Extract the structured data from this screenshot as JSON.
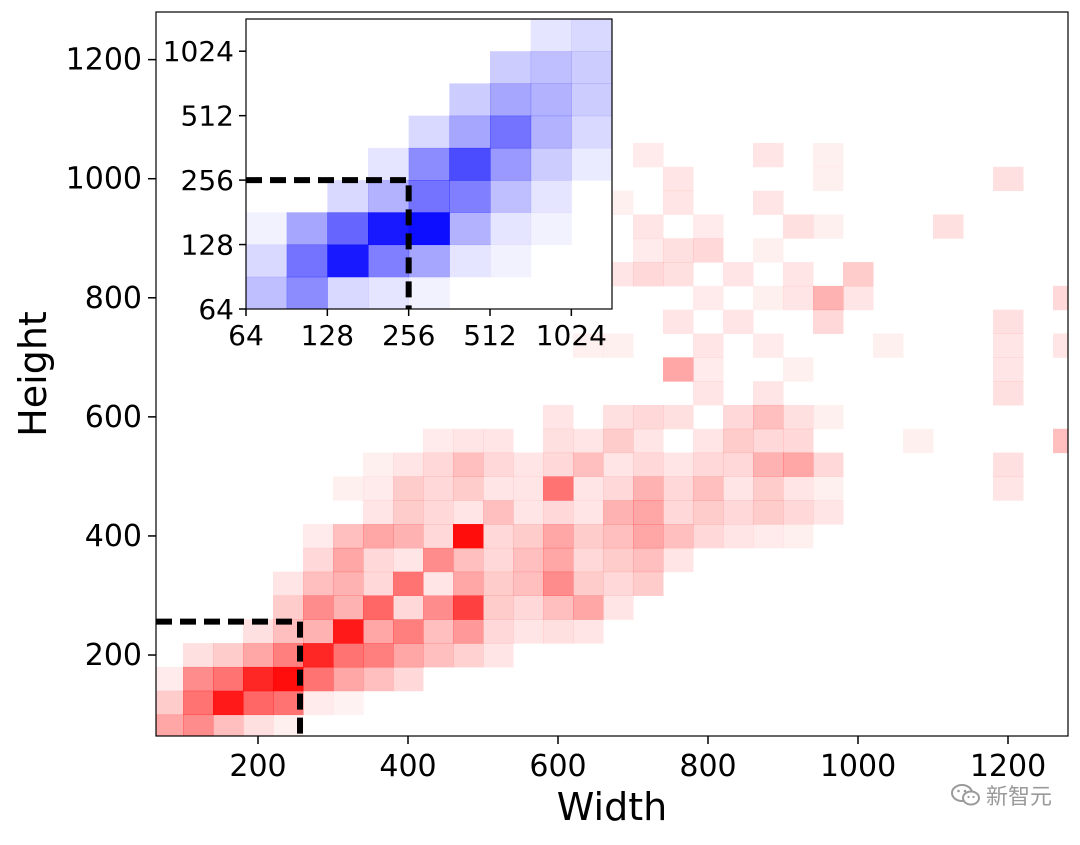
{
  "chart_data": [
    {
      "type": "heatmap",
      "title": "",
      "xlabel": "Width",
      "ylabel": "Height",
      "xlim": [
        64,
        1280
      ],
      "ylim": [
        64,
        1280
      ],
      "xticks": [
        200,
        400,
        600,
        800,
        1000,
        1200
      ],
      "yticks": [
        200,
        400,
        600,
        800,
        1000,
        1200
      ],
      "bin_size": 40,
      "color": "#ff0000",
      "intensity_scale": [
        0,
        1
      ],
      "guide": {
        "style": "dashed",
        "x": 256,
        "y": 256,
        "color": "#000000"
      },
      "cells": [
        [
          80,
          80,
          0.35
        ],
        [
          120,
          80,
          0.45
        ],
        [
          160,
          80,
          0.25
        ],
        [
          200,
          80,
          0.12
        ],
        [
          240,
          80,
          0.06
        ],
        [
          80,
          120,
          0.2
        ],
        [
          120,
          120,
          0.55
        ],
        [
          160,
          120,
          0.9
        ],
        [
          200,
          120,
          0.6
        ],
        [
          240,
          120,
          0.55
        ],
        [
          280,
          120,
          0.08
        ],
        [
          320,
          120,
          0.05
        ],
        [
          80,
          160,
          0.08
        ],
        [
          120,
          160,
          0.45
        ],
        [
          160,
          160,
          0.55
        ],
        [
          200,
          160,
          0.85
        ],
        [
          240,
          160,
          0.95
        ],
        [
          280,
          160,
          0.55
        ],
        [
          320,
          160,
          0.35
        ],
        [
          360,
          160,
          0.25
        ],
        [
          400,
          160,
          0.15
        ],
        [
          120,
          200,
          0.12
        ],
        [
          160,
          200,
          0.2
        ],
        [
          200,
          200,
          0.35
        ],
        [
          240,
          200,
          0.5
        ],
        [
          280,
          200,
          0.85
        ],
        [
          320,
          200,
          0.55
        ],
        [
          360,
          200,
          0.5
        ],
        [
          400,
          200,
          0.35
        ],
        [
          440,
          200,
          0.25
        ],
        [
          480,
          200,
          0.18
        ],
        [
          520,
          200,
          0.1
        ],
        [
          200,
          240,
          0.12
        ],
        [
          240,
          240,
          0.25
        ],
        [
          280,
          240,
          0.3
        ],
        [
          320,
          240,
          0.9
        ],
        [
          360,
          240,
          0.35
        ],
        [
          400,
          240,
          0.5
        ],
        [
          440,
          240,
          0.25
        ],
        [
          480,
          240,
          0.4
        ],
        [
          520,
          240,
          0.15
        ],
        [
          560,
          240,
          0.1
        ],
        [
          600,
          240,
          0.12
        ],
        [
          640,
          240,
          0.1
        ],
        [
          240,
          280,
          0.2
        ],
        [
          280,
          280,
          0.45
        ],
        [
          320,
          280,
          0.3
        ],
        [
          360,
          280,
          0.6
        ],
        [
          400,
          280,
          0.15
        ],
        [
          440,
          280,
          0.45
        ],
        [
          480,
          280,
          0.75
        ],
        [
          520,
          280,
          0.2
        ],
        [
          560,
          280,
          0.15
        ],
        [
          600,
          280,
          0.25
        ],
        [
          640,
          280,
          0.35
        ],
        [
          680,
          280,
          0.1
        ],
        [
          240,
          320,
          0.1
        ],
        [
          280,
          320,
          0.25
        ],
        [
          320,
          320,
          0.3
        ],
        [
          360,
          320,
          0.15
        ],
        [
          400,
          320,
          0.55
        ],
        [
          440,
          320,
          0.1
        ],
        [
          480,
          320,
          0.35
        ],
        [
          520,
          320,
          0.2
        ],
        [
          560,
          320,
          0.25
        ],
        [
          600,
          320,
          0.45
        ],
        [
          640,
          320,
          0.2
        ],
        [
          680,
          320,
          0.15
        ],
        [
          720,
          320,
          0.2
        ],
        [
          280,
          360,
          0.15
        ],
        [
          320,
          360,
          0.35
        ],
        [
          360,
          360,
          0.15
        ],
        [
          400,
          360,
          0.1
        ],
        [
          440,
          360,
          0.45
        ],
        [
          480,
          360,
          0.25
        ],
        [
          520,
          360,
          0.15
        ],
        [
          560,
          360,
          0.25
        ],
        [
          600,
          360,
          0.35
        ],
        [
          640,
          360,
          0.15
        ],
        [
          680,
          360,
          0.2
        ],
        [
          720,
          360,
          0.25
        ],
        [
          760,
          360,
          0.1
        ],
        [
          280,
          400,
          0.08
        ],
        [
          320,
          400,
          0.25
        ],
        [
          360,
          400,
          0.35
        ],
        [
          400,
          400,
          0.3
        ],
        [
          440,
          400,
          0.15
        ],
        [
          480,
          400,
          0.95
        ],
        [
          520,
          400,
          0.15
        ],
        [
          560,
          400,
          0.2
        ],
        [
          600,
          400,
          0.35
        ],
        [
          640,
          400,
          0.2
        ],
        [
          680,
          400,
          0.25
        ],
        [
          720,
          400,
          0.35
        ],
        [
          760,
          400,
          0.25
        ],
        [
          800,
          400,
          0.15
        ],
        [
          840,
          400,
          0.1
        ],
        [
          880,
          400,
          0.08
        ],
        [
          920,
          400,
          0.06
        ],
        [
          360,
          440,
          0.1
        ],
        [
          400,
          440,
          0.2
        ],
        [
          440,
          440,
          0.15
        ],
        [
          480,
          440,
          0.1
        ],
        [
          520,
          440,
          0.25
        ],
        [
          560,
          440,
          0.1
        ],
        [
          600,
          440,
          0.15
        ],
        [
          640,
          440,
          0.1
        ],
        [
          680,
          440,
          0.3
        ],
        [
          720,
          440,
          0.35
        ],
        [
          760,
          440,
          0.15
        ],
        [
          800,
          440,
          0.2
        ],
        [
          840,
          440,
          0.15
        ],
        [
          880,
          440,
          0.2
        ],
        [
          920,
          440,
          0.15
        ],
        [
          960,
          440,
          0.1
        ],
        [
          320,
          480,
          0.06
        ],
        [
          360,
          480,
          0.08
        ],
        [
          400,
          480,
          0.2
        ],
        [
          440,
          480,
          0.15
        ],
        [
          480,
          480,
          0.2
        ],
        [
          520,
          480,
          0.1
        ],
        [
          560,
          480,
          0.1
        ],
        [
          600,
          480,
          0.55
        ],
        [
          640,
          480,
          0.1
        ],
        [
          680,
          480,
          0.15
        ],
        [
          720,
          480,
          0.3
        ],
        [
          760,
          480,
          0.15
        ],
        [
          800,
          480,
          0.25
        ],
        [
          840,
          480,
          0.1
        ],
        [
          880,
          480,
          0.2
        ],
        [
          920,
          480,
          0.1
        ],
        [
          960,
          480,
          0.06
        ],
        [
          1200,
          480,
          0.1
        ],
        [
          360,
          520,
          0.06
        ],
        [
          400,
          520,
          0.1
        ],
        [
          440,
          520,
          0.15
        ],
        [
          480,
          520,
          0.25
        ],
        [
          520,
          520,
          0.15
        ],
        [
          560,
          520,
          0.1
        ],
        [
          600,
          520,
          0.15
        ],
        [
          640,
          520,
          0.25
        ],
        [
          680,
          520,
          0.1
        ],
        [
          720,
          520,
          0.15
        ],
        [
          760,
          520,
          0.1
        ],
        [
          800,
          520,
          0.15
        ],
        [
          840,
          520,
          0.15
        ],
        [
          880,
          520,
          0.3
        ],
        [
          920,
          520,
          0.35
        ],
        [
          960,
          520,
          0.15
        ],
        [
          1200,
          520,
          0.12
        ],
        [
          440,
          560,
          0.08
        ],
        [
          480,
          560,
          0.1
        ],
        [
          520,
          560,
          0.1
        ],
        [
          600,
          560,
          0.12
        ],
        [
          640,
          560,
          0.1
        ],
        [
          680,
          560,
          0.2
        ],
        [
          720,
          560,
          0.1
        ],
        [
          800,
          560,
          0.1
        ],
        [
          840,
          560,
          0.2
        ],
        [
          880,
          560,
          0.15
        ],
        [
          920,
          560,
          0.15
        ],
        [
          1080,
          560,
          0.06
        ],
        [
          1280,
          560,
          0.25
        ],
        [
          600,
          600,
          0.1
        ],
        [
          680,
          600,
          0.12
        ],
        [
          720,
          600,
          0.15
        ],
        [
          760,
          600,
          0.12
        ],
        [
          840,
          600,
          0.15
        ],
        [
          880,
          600,
          0.25
        ],
        [
          920,
          600,
          0.12
        ],
        [
          960,
          600,
          0.06
        ],
        [
          800,
          640,
          0.1
        ],
        [
          880,
          640,
          0.1
        ],
        [
          1200,
          640,
          0.12
        ],
        [
          760,
          680,
          0.35
        ],
        [
          800,
          680,
          0.08
        ],
        [
          920,
          680,
          0.06
        ],
        [
          1200,
          680,
          0.1
        ],
        [
          640,
          720,
          0.06
        ],
        [
          680,
          720,
          0.06
        ],
        [
          800,
          720,
          0.1
        ],
        [
          880,
          720,
          0.08
        ],
        [
          1040,
          720,
          0.06
        ],
        [
          1200,
          720,
          0.1
        ],
        [
          1280,
          720,
          0.1
        ],
        [
          760,
          760,
          0.1
        ],
        [
          840,
          760,
          0.1
        ],
        [
          960,
          760,
          0.15
        ],
        [
          1200,
          760,
          0.12
        ],
        [
          800,
          800,
          0.08
        ],
        [
          880,
          800,
          0.06
        ],
        [
          920,
          800,
          0.1
        ],
        [
          960,
          800,
          0.3
        ],
        [
          1000,
          800,
          0.1
        ],
        [
          1280,
          800,
          0.15
        ],
        [
          680,
          840,
          0.1
        ],
        [
          720,
          840,
          0.15
        ],
        [
          760,
          840,
          0.12
        ],
        [
          840,
          840,
          0.1
        ],
        [
          920,
          840,
          0.1
        ],
        [
          1000,
          840,
          0.2
        ],
        [
          720,
          880,
          0.08
        ],
        [
          760,
          880,
          0.12
        ],
        [
          800,
          880,
          0.15
        ],
        [
          880,
          880,
          0.06
        ],
        [
          720,
          920,
          0.1
        ],
        [
          800,
          920,
          0.08
        ],
        [
          920,
          920,
          0.12
        ],
        [
          960,
          920,
          0.06
        ],
        [
          1120,
          920,
          0.12
        ],
        [
          680,
          960,
          0.06
        ],
        [
          760,
          960,
          0.1
        ],
        [
          880,
          960,
          0.1
        ],
        [
          760,
          1000,
          0.1
        ],
        [
          960,
          1000,
          0.06
        ],
        [
          1200,
          1000,
          0.12
        ],
        [
          720,
          1040,
          0.08
        ],
        [
          880,
          1040,
          0.1
        ],
        [
          960,
          1040,
          0.06
        ]
      ]
    },
    {
      "type": "heatmap",
      "title": "",
      "xlabel": "",
      "ylabel": "",
      "scale": "log2",
      "xlim": [
        64,
        1448
      ],
      "ylim": [
        64,
        1448
      ],
      "xticks": [
        64,
        128,
        256,
        512,
        1024
      ],
      "yticks": [
        64,
        128,
        256,
        512,
        1024
      ],
      "color": "#0000ff",
      "guide": {
        "style": "dashed",
        "x": 256,
        "y": 256,
        "color": "#000000"
      },
      "cells_log2": [
        [
          6.25,
          6.25,
          0.25
        ],
        [
          6.75,
          6.25,
          0.45
        ],
        [
          7.25,
          6.25,
          0.15
        ],
        [
          7.75,
          6.25,
          0.1
        ],
        [
          8.25,
          6.25,
          0.05
        ],
        [
          6.25,
          6.75,
          0.15
        ],
        [
          6.75,
          6.75,
          0.55
        ],
        [
          7.25,
          6.75,
          0.9
        ],
        [
          7.75,
          6.75,
          0.5
        ],
        [
          8.25,
          6.75,
          0.35
        ],
        [
          8.75,
          6.75,
          0.1
        ],
        [
          9.25,
          6.75,
          0.05
        ],
        [
          6.25,
          7.25,
          0.05
        ],
        [
          6.75,
          7.25,
          0.35
        ],
        [
          7.25,
          7.25,
          0.6
        ],
        [
          7.75,
          7.25,
          0.9
        ],
        [
          8.25,
          7.25,
          0.95
        ],
        [
          8.75,
          7.25,
          0.3
        ],
        [
          9.25,
          7.25,
          0.1
        ],
        [
          9.75,
          7.25,
          0.05
        ],
        [
          7.25,
          7.75,
          0.15
        ],
        [
          7.75,
          7.75,
          0.3
        ],
        [
          8.25,
          7.75,
          0.55
        ],
        [
          8.75,
          7.75,
          0.5
        ],
        [
          9.25,
          7.75,
          0.25
        ],
        [
          9.75,
          7.75,
          0.1
        ],
        [
          7.75,
          8.25,
          0.1
        ],
        [
          8.25,
          8.25,
          0.45
        ],
        [
          8.75,
          8.25,
          0.7
        ],
        [
          9.25,
          8.25,
          0.4
        ],
        [
          9.75,
          8.25,
          0.2
        ],
        [
          10.25,
          8.25,
          0.08
        ],
        [
          8.25,
          8.75,
          0.15
        ],
        [
          8.75,
          8.75,
          0.35
        ],
        [
          9.25,
          8.75,
          0.55
        ],
        [
          9.75,
          8.75,
          0.3
        ],
        [
          10.25,
          8.75,
          0.15
        ],
        [
          10.75,
          8.75,
          0.05
        ],
        [
          8.75,
          9.25,
          0.2
        ],
        [
          9.25,
          9.25,
          0.35
        ],
        [
          9.75,
          9.25,
          0.3
        ],
        [
          10.25,
          9.25,
          0.2
        ],
        [
          10.75,
          9.25,
          0.1
        ],
        [
          9.25,
          9.75,
          0.2
        ],
        [
          9.75,
          9.75,
          0.25
        ],
        [
          10.25,
          9.75,
          0.2
        ],
        [
          10.75,
          9.75,
          0.1
        ],
        [
          9.75,
          10.25,
          0.1
        ],
        [
          10.25,
          10.25,
          0.15
        ],
        [
          10.75,
          10.25,
          0.1
        ]
      ]
    }
  ],
  "watermark": {
    "text": "新智元",
    "icon": "wechat-icon"
  }
}
